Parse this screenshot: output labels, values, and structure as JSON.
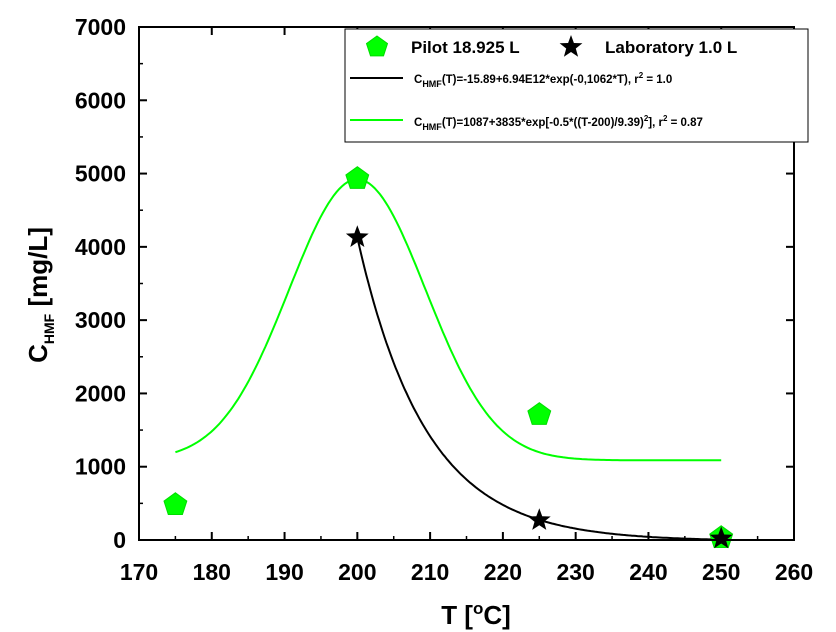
{
  "chart_data": {
    "type": "scatter",
    "xlabel": {
      "main": "T [",
      "sup": "o",
      "tail": "C]"
    },
    "ylabel": {
      "main": "C",
      "sub": "HMF",
      "tail": " [mg/L]"
    },
    "xlim": [
      170,
      260
    ],
    "ylim": [
      0,
      7000
    ],
    "xticks": [
      170,
      180,
      190,
      200,
      210,
      220,
      230,
      240,
      250,
      260
    ],
    "yticks": [
      0,
      1000,
      2000,
      3000,
      4000,
      5000,
      6000,
      7000
    ],
    "grid": false,
    "legend_position": "top-right",
    "colors": {
      "pilot": "#00ff00",
      "laboratory": "#000000",
      "gauss_line": "#00ff00",
      "exp_line": "#000000"
    },
    "series": [
      {
        "name": "Pilot 18.925 L",
        "marker": "pentagon",
        "x": [
          175,
          200,
          225,
          250
        ],
        "y": [
          480,
          4930,
          1710,
          30
        ]
      },
      {
        "name": "Laboratory 1.0 L",
        "marker": "star",
        "x": [
          200,
          225,
          250
        ],
        "y": [
          4130,
          270,
          20
        ]
      }
    ],
    "fits": [
      {
        "kind": "exponential",
        "color_key": "exp_line",
        "x_range": [
          200,
          250
        ],
        "params": {
          "a": -15.89,
          "b": 6940000000000.0,
          "k": 0.1062
        },
        "label": {
          "pre": "C",
          "sub": "HMF",
          "post": "(T)=-15.89+6.94E12*exp(-0,1062*T), r",
          "sup": "2",
          "tail": " = 1.0"
        }
      },
      {
        "kind": "gaussian",
        "color_key": "gauss_line",
        "x_range": [
          175,
          250
        ],
        "params": {
          "y0": 1087,
          "A": 3835,
          "xc": 200,
          "w": 9.39
        },
        "label": {
          "pre": "C",
          "sub": "HMF",
          "post": "(T)=1087+3835*exp[-0.5*((T-200)/9.39)",
          "sup": "2",
          "mid": "], r",
          "sup2": "2",
          "tail": " = 0.87"
        }
      }
    ]
  }
}
